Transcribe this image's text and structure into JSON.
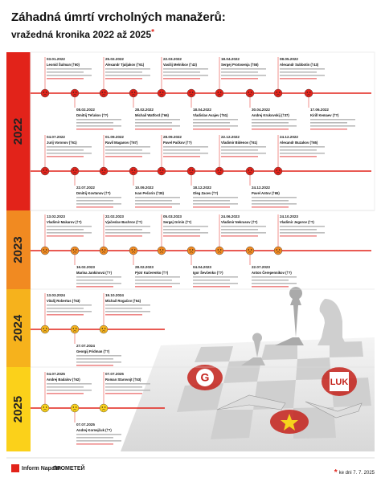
{
  "header": {
    "title": "Záhadná úmrtí vrcholných manažerů:",
    "subtitle": "vražedná kronika 2022 až 2025",
    "asterisk": "*"
  },
  "sections": [
    {
      "year": "2022",
      "lines": [
        {
          "top": [
            {
              "date": "03.01.2022",
              "name": "Leonid Šulman (†60)"
            },
            {
              "date": "25.02.2022",
              "name": "Alexandr Tjuljakov (†61)"
            },
            {
              "date": "22.03.2022",
              "name": "Vasilij Melnikov (†43)"
            },
            {
              "date": "18.04.2022",
              "name": "Sergej Protosenja (†55)"
            },
            {
              "date": "08.05.2022",
              "name": "Alexandr Subbotin (†43)"
            }
          ],
          "bottom": [
            {
              "date": "08.02.2022",
              "name": "Dmitrij Teťakov (†?)"
            },
            {
              "date": "28.02.2022",
              "name": "Michail Watford (†66)"
            },
            {
              "date": "18.04.2022",
              "name": "Vladislav Avajev (†51)"
            },
            {
              "date": "30.04.2022",
              "name": "Andrej Krukovskij (†37)"
            },
            {
              "date": "17.06.2022",
              "name": "Kirill Kemaev (†?)"
            }
          ]
        },
        {
          "top": [
            {
              "date": "04.07.2022",
              "name": "Jurij Voronov (†61)"
            },
            {
              "date": "01.09.2022",
              "name": "Ravil Maganov (†67)"
            },
            {
              "date": "28.09.2022",
              "name": "Pavel Pačkov (†?)"
            },
            {
              "date": "22.12.2022",
              "name": "Vladimir Bidenov (†61)"
            },
            {
              "date": "24.12.2022",
              "name": "Alexandr Buzakov (†65)"
            }
          ],
          "bottom": [
            {
              "date": "22.07.2022",
              "name": "Dmitrij Kovtunov (†?)"
            },
            {
              "date": "10.09.2022",
              "name": "Ivan Pečorin (†39)"
            },
            {
              "date": "18.12.2022",
              "name": "Oleg Zacev (†?)"
            },
            {
              "date": "24.12.2022",
              "name": "Pavel Antov (†65)"
            }
          ]
        }
      ]
    },
    {
      "year": "2023",
      "lines": [
        {
          "top": [
            {
              "date": "13.02.2023",
              "name": "Vladimir Makarov (†?)"
            },
            {
              "date": "22.02.2023",
              "name": "Vjačeslav Bachrov (†?)"
            },
            {
              "date": "05.03.2023",
              "name": "Sergej Grinin (†?)"
            },
            {
              "date": "24.06.2023",
              "name": "Vladimir Nekrasov (†?)"
            },
            {
              "date": "24.10.2023",
              "name": "Vladimir Jegorov (†?)"
            }
          ],
          "bottom": [
            {
              "date": "16.02.2023",
              "name": "Marina Jankinová (†?)"
            },
            {
              "date": "28.02.2023",
              "name": "Pjotr Kučerenko (†?)"
            },
            {
              "date": "04.04.2023",
              "name": "Igor Ševčenko (†?)"
            },
            {
              "date": "22.07.2023",
              "name": "Anton Čerepennikov (†?)"
            }
          ]
        }
      ]
    },
    {
      "year": "2024",
      "lines": [
        {
          "top": [
            {
              "date": "13.03.2024",
              "name": "Vitalij Robertus (†53)"
            },
            {
              "date": "19.10.2024",
              "name": "Michail Rogačov (†64)"
            }
          ],
          "bottom": [
            {
              "date": "27.07.2024",
              "name": "Georgij Fridman (†?)"
            }
          ]
        }
      ]
    },
    {
      "year": "2025",
      "lines": [
        {
          "top": [
            {
              "date": "04.07.2025",
              "name": "Andrej Badalov (†62)"
            },
            {
              "date": "07.07.2025",
              "name": "Roman Starovojt (†53)"
            }
          ],
          "bottom": [
            {
              "date": "07.07.2025",
              "name": "Andrej Kornejčuk (†?)"
            }
          ]
        }
      ]
    }
  ],
  "footer": {
    "asterisk": "*",
    "note": "ke dni 7. 7. 2025",
    "logo1": "Inform Napalm",
    "logo2": "ПРОМЕТЕЙ"
  }
}
